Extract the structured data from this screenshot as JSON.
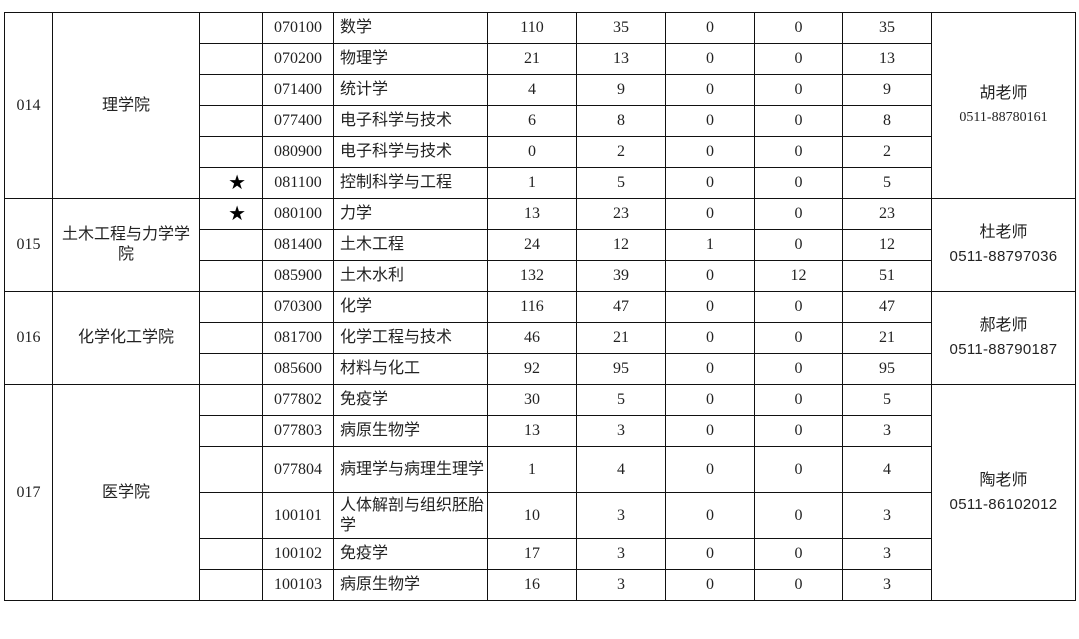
{
  "groups": [
    {
      "code": "014",
      "college": "理学院",
      "contact": "胡老师",
      "phone": "0511-88780161",
      "rows": [
        {
          "star": "",
          "major_code": "070100",
          "major": "数学",
          "values": [
            "110",
            "35",
            "0",
            "0",
            "35"
          ]
        },
        {
          "star": "",
          "major_code": "070200",
          "major": "物理学",
          "values": [
            "21",
            "13",
            "0",
            "0",
            "13"
          ]
        },
        {
          "star": "",
          "major_code": "071400",
          "major": "统计学",
          "values": [
            "4",
            "9",
            "0",
            "0",
            "9"
          ]
        },
        {
          "star": "",
          "major_code": "077400",
          "major": "电子科学与技术",
          "values": [
            "6",
            "8",
            "0",
            "0",
            "8"
          ]
        },
        {
          "star": "",
          "major_code": "080900",
          "major": "电子科学与技术",
          "values": [
            "0",
            "2",
            "0",
            "0",
            "2"
          ]
        },
        {
          "star": "★",
          "major_code": "081100",
          "major": "控制科学与工程",
          "values": [
            "1",
            "5",
            "0",
            "0",
            "5"
          ]
        }
      ]
    },
    {
      "code": "015",
      "college": "土木工程与力学学院",
      "contact": "杜老师",
      "phone": "0511-88797036",
      "rows": [
        {
          "star": "★",
          "major_code": "080100",
          "major": "力学",
          "values": [
            "13",
            "23",
            "0",
            "0",
            "23"
          ]
        },
        {
          "star": "",
          "major_code": "081400",
          "major": "土木工程",
          "values": [
            "24",
            "12",
            "1",
            "0",
            "12"
          ]
        },
        {
          "star": "",
          "major_code": "085900",
          "major": "土木水利",
          "values": [
            "132",
            "39",
            "0",
            "12",
            "51"
          ]
        }
      ]
    },
    {
      "code": "016",
      "college": "化学化工学院",
      "contact": "郝老师",
      "phone": "0511-88790187",
      "rows": [
        {
          "star": "",
          "major_code": "070300",
          "major": "化学",
          "values": [
            "116",
            "47",
            "0",
            "0",
            "47"
          ]
        },
        {
          "star": "",
          "major_code": "081700",
          "major": "化学工程与技术",
          "values": [
            "46",
            "21",
            "0",
            "0",
            "21"
          ]
        },
        {
          "star": "",
          "major_code": "085600",
          "major": "材料与化工",
          "values": [
            "92",
            "95",
            "0",
            "0",
            "95"
          ]
        }
      ]
    },
    {
      "code": "017",
      "college": "医学院",
      "contact": "陶老师",
      "phone": "0511-86102012",
      "rows": [
        {
          "star": "",
          "major_code": "077802",
          "major": "免疫学",
          "values": [
            "30",
            "5",
            "0",
            "0",
            "5"
          ]
        },
        {
          "star": "",
          "major_code": "077803",
          "major": "病原生物学",
          "values": [
            "13",
            "3",
            "0",
            "0",
            "3"
          ]
        },
        {
          "star": "",
          "major_code": "077804",
          "major": "病理学与病理生理学",
          "values": [
            "1",
            "4",
            "0",
            "0",
            "4"
          ]
        },
        {
          "star": "",
          "major_code": "100101",
          "major": "人体解剖与组织胚胎学",
          "values": [
            "10",
            "3",
            "0",
            "0",
            "3"
          ]
        },
        {
          "star": "",
          "major_code": "100102",
          "major": "免疫学",
          "values": [
            "17",
            "3",
            "0",
            "0",
            "3"
          ]
        },
        {
          "star": "",
          "major_code": "100103",
          "major": "病原生物学",
          "values": [
            "16",
            "3",
            "0",
            "0",
            "3"
          ]
        }
      ]
    }
  ]
}
